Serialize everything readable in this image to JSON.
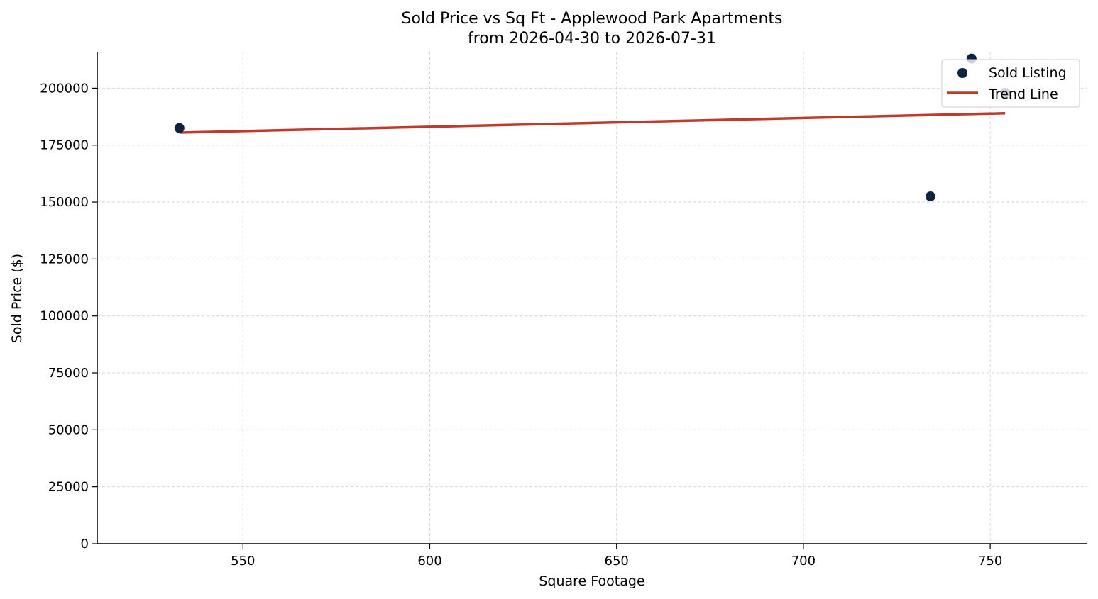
{
  "chart_data": {
    "type": "scatter",
    "title": "Sold Price vs Sq Ft - Applewood Park Apartments",
    "subtitle": "from 2026-04-30 to 2026-07-31",
    "xlabel": "Square Footage",
    "ylabel": "Sold Price ($)",
    "xlim": [
      511,
      776
    ],
    "ylim": [
      0,
      216000
    ],
    "xticks": [
      550,
      600,
      650,
      700,
      750
    ],
    "yticks": [
      0,
      25000,
      50000,
      75000,
      100000,
      125000,
      150000,
      175000,
      200000
    ],
    "grid": true,
    "legend_position": "top-right",
    "series": [
      {
        "name": "Sold Listing",
        "kind": "scatter",
        "color": "#0e2340",
        "points": [
          {
            "x": 533,
            "y": 182500
          },
          {
            "x": 734,
            "y": 152500
          },
          {
            "x": 745,
            "y": 213000
          },
          {
            "x": 754,
            "y": 198000
          }
        ]
      },
      {
        "name": "Trend Line",
        "kind": "line",
        "color": "#c0392b",
        "points": [
          {
            "x": 533,
            "y": 180500
          },
          {
            "x": 754,
            "y": 189000
          }
        ]
      }
    ]
  }
}
